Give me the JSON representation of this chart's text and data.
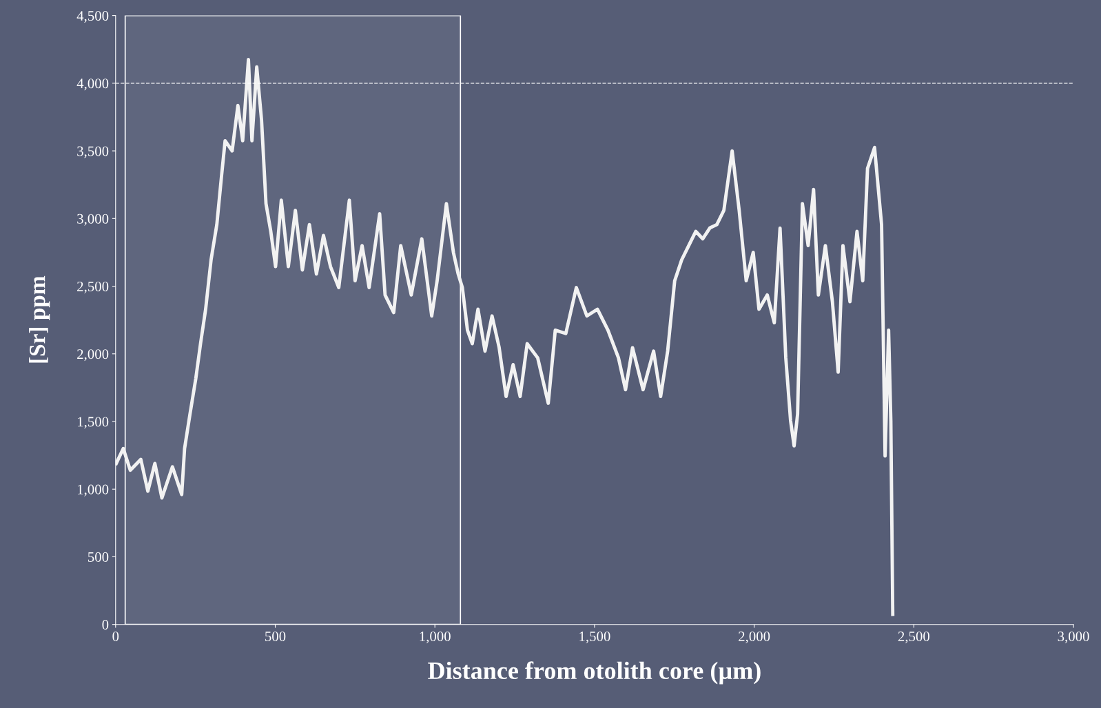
{
  "chart_data": {
    "type": "line",
    "xlabel": "Distance from otolith core (µm)",
    "ylabel": "[Sr] ppm",
    "xlim": [
      0,
      3000
    ],
    "ylim": [
      0,
      4500
    ],
    "xticks": [
      0,
      500,
      {
        "value": 1000,
        "label": "1,000"
      },
      {
        "value": 1500,
        "label": "1,500"
      },
      {
        "value": 2000,
        "label": "2,000"
      },
      {
        "value": 2500,
        "label": "2,500"
      },
      {
        "value": 3000,
        "label": "3,000"
      }
    ],
    "yticks": [
      0,
      500,
      {
        "value": 1000,
        "label": "1,000"
      },
      {
        "value": 1500,
        "label": "1,500"
      },
      {
        "value": 2000,
        "label": "2,000"
      },
      {
        "value": 2500,
        "label": "2,500"
      },
      {
        "value": 3000,
        "label": "3,000"
      },
      {
        "value": 3500,
        "label": "3,500"
      },
      {
        "value": 4000,
        "label": "4,000"
      },
      {
        "value": 4500,
        "label": "4,500"
      }
    ],
    "grid": false,
    "legend": false,
    "marker": "none",
    "line_style": "solid",
    "ref_lines": [
      {
        "axis": "y",
        "value": 4000,
        "color": "#ffffff",
        "line_style": "dashed"
      }
    ],
    "bands": [
      {
        "axis": "x",
        "from": 30,
        "to": 1080,
        "color": "#ffffff"
      }
    ],
    "series": [
      {
        "color": "#f2f2f2",
        "x": [
          2,
          24,
          46,
          79,
          101,
          123,
          145,
          178,
          207,
          216,
          233,
          251,
          266,
          282,
          299,
          317,
          332,
          343,
          365,
          383,
          398,
          416,
          427,
          442,
          457,
          471,
          486,
          501,
          519,
          541,
          563,
          585,
          607,
          629,
          651,
          673,
          699,
          732,
          750,
          772,
          794,
          827,
          844,
          871,
          893,
          926,
          959,
          990,
          1007,
          1036,
          1058,
          1073,
          1086,
          1102,
          1117,
          1135,
          1157,
          1179,
          1201,
          1223,
          1245,
          1267,
          1289,
          1322,
          1355,
          1377,
          1410,
          1443,
          1476,
          1509,
          1542,
          1575,
          1597,
          1619,
          1652,
          1685,
          1707,
          1729,
          1751,
          1773,
          1795,
          1817,
          1839,
          1861,
          1883,
          1905,
          1931,
          1953,
          1975,
          1997,
          2015,
          2041,
          2063,
          2081,
          2099,
          2114,
          2125,
          2136,
          2151,
          2169,
          2186,
          2201,
          2223,
          2245,
          2263,
          2278,
          2300,
          2322,
          2340,
          2355,
          2377,
          2399,
          2410,
          2421,
          2428,
          2434
        ],
        "values": [
          1190,
          1300,
          1140,
          1220,
          985,
          1190,
          935,
          1165,
          960,
          1300,
          1555,
          1815,
          2075,
          2330,
          2695,
          2955,
          3320,
          3575,
          3500,
          3835,
          3575,
          4175,
          3575,
          4120,
          3730,
          3110,
          2905,
          2645,
          3135,
          2645,
          3060,
          2620,
          2955,
          2590,
          2875,
          2645,
          2490,
          3135,
          2540,
          2800,
          2490,
          3035,
          2435,
          2305,
          2800,
          2435,
          2850,
          2280,
          2540,
          3110,
          2750,
          2590,
          2490,
          2175,
          2075,
          2330,
          2020,
          2280,
          2050,
          1685,
          1920,
          1685,
          2075,
          1970,
          1635,
          2175,
          2150,
          2490,
          2280,
          2330,
          2175,
          1970,
          1735,
          2045,
          1735,
          2020,
          1685,
          2020,
          2540,
          2695,
          2800,
          2905,
          2850,
          2930,
          2955,
          3060,
          3500,
          3060,
          2540,
          2750,
          2330,
          2435,
          2230,
          2930,
          1970,
          1505,
          1320,
          1555,
          3110,
          2800,
          3215,
          2435,
          2800,
          2385,
          1865,
          2800,
          2385,
          2905,
          2540,
          3370,
          3525,
          2955,
          1245,
          2175,
          1505,
          75
        ]
      }
    ]
  }
}
